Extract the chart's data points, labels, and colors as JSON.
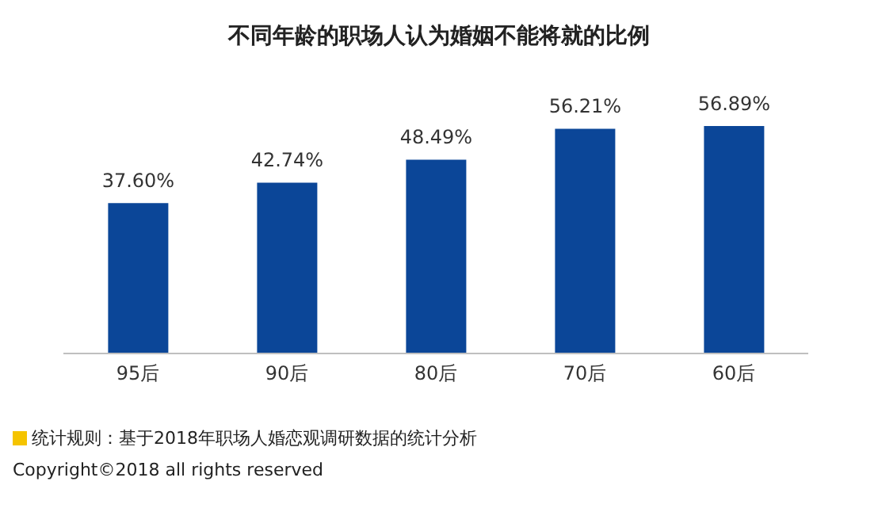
{
  "chart_data": {
    "type": "bar",
    "title": "不同年龄的职场人认为婚姻不能将就的比例",
    "categories": [
      "95后",
      "90后",
      "80后",
      "70后",
      "60后"
    ],
    "values": [
      37.6,
      42.74,
      48.49,
      56.21,
      56.89
    ],
    "value_labels": [
      "37.60%",
      "42.74%",
      "48.49%",
      "56.21%",
      "56.89%"
    ],
    "color": "#0b4698",
    "annotations": [
      "统计规则：基于2018年职场人婚恋观调研数据的统计分析",
      "Copyright©2018 all rights reserved"
    ]
  }
}
